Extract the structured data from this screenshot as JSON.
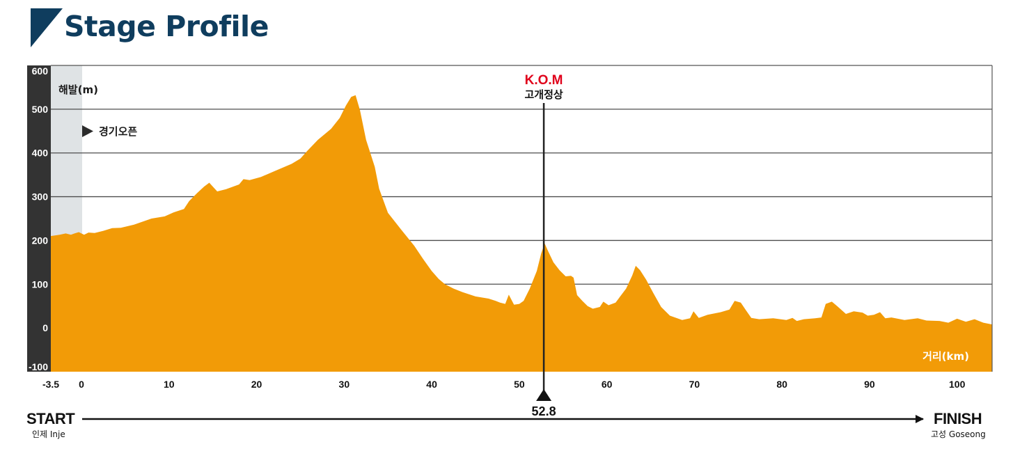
{
  "title": "Stage Profile",
  "colors": {
    "title": "#0f3d5e",
    "profile_fill": "#f29b07",
    "kom_label": "#e0001b",
    "left_axis_bar": "#333333",
    "neutral_zone": "#dfe3e5",
    "grid": "#4d4d4d"
  },
  "chart_data": {
    "type": "area",
    "ylabel": "해발(m)",
    "xlabel": "거리(km)",
    "ylim": [
      -100,
      600
    ],
    "xlim": [
      -3.5,
      104
    ],
    "y_ticks": [
      "600",
      "500",
      "400",
      "300",
      "200",
      "100",
      "0",
      "-100"
    ],
    "y_tick_values": [
      600,
      500,
      400,
      300,
      200,
      100,
      0,
      -100
    ],
    "x_ticks": [
      "-3.5",
      "0",
      "10",
      "20",
      "30",
      "40",
      "50",
      "60",
      "70",
      "80",
      "90",
      "100"
    ],
    "x_tick_values": [
      -3.5,
      0,
      10,
      20,
      30,
      40,
      50,
      60,
      70,
      80,
      90,
      100
    ],
    "neutral_zone": {
      "from_km": -3.5,
      "to_km": 0
    },
    "race_start_label": "경기오픈",
    "kom": {
      "title": "K.O.M",
      "name": "고개정상",
      "km": 52.8,
      "km_label": "52.8"
    },
    "grid": true,
    "profile": {
      "x": [
        -3.5,
        -2.5,
        -1.8,
        -1.2,
        -0.8,
        -0.3,
        0.3,
        0.8,
        1.5,
        2.5,
        3.5,
        4.5,
        6,
        8,
        9.5,
        10.5,
        11.7,
        12.3,
        13.2,
        14,
        14.6,
        15,
        15.5,
        16.5,
        18,
        18.5,
        19.2,
        20.5,
        22,
        24,
        25,
        25.8,
        27,
        28.5,
        29.5,
        30.2,
        30.8,
        31.3,
        31.8,
        32.5,
        33.5,
        34,
        35,
        36.5,
        38,
        39,
        40,
        40.8,
        41.5,
        42.5,
        43.5,
        45,
        46.5,
        47.3,
        47.8,
        48.4,
        48.8,
        49.4,
        50,
        50.5,
        51.2,
        52,
        52.5,
        52.9,
        53.3,
        53.9,
        54.6,
        55.3,
        55.9,
        56.2,
        56.6,
        57.2,
        57.8,
        58.4,
        59.2,
        59.6,
        60.2,
        61,
        62.2,
        62.9,
        63.3,
        63.8,
        64.5,
        65.3,
        66.2,
        67.2,
        68.6,
        69.5,
        69.9,
        70.5,
        71.5,
        73,
        74,
        74.6,
        75.3,
        75.9,
        76.5,
        77.4,
        79,
        80.5,
        81.2,
        81.7,
        82.5,
        83.8,
        84.5,
        85,
        85.7,
        86.3,
        87.3,
        88.2,
        89.2,
        89.8,
        90.5,
        91.2,
        91.8,
        92.5,
        94,
        95.5,
        96.5,
        98,
        99,
        100,
        101,
        102,
        103,
        104
      ],
      "y": [
        210,
        213,
        216,
        213,
        216,
        219,
        213,
        218,
        217,
        222,
        228,
        229,
        236,
        250,
        255,
        264,
        272,
        290,
        308,
        323,
        332,
        323,
        312,
        317,
        328,
        340,
        338,
        345,
        358,
        375,
        387,
        405,
        430,
        455,
        480,
        508,
        528,
        532,
        498,
        430,
        368,
        318,
        263,
        225,
        188,
        158,
        130,
        112,
        100,
        90,
        82,
        72,
        67,
        62,
        58,
        55,
        76,
        53,
        55,
        62,
        90,
        130,
        170,
        193,
        175,
        150,
        132,
        118,
        119,
        115,
        75,
        62,
        50,
        44,
        48,
        60,
        52,
        58,
        90,
        120,
        142,
        132,
        110,
        80,
        48,
        28,
        18,
        22,
        38,
        23,
        30,
        36,
        42,
        62,
        58,
        40,
        23,
        20,
        22,
        18,
        23,
        16,
        20,
        22,
        24,
        55,
        60,
        50,
        32,
        38,
        35,
        28,
        30,
        36,
        22,
        24,
        18,
        22,
        17,
        16,
        12,
        21,
        14,
        20,
        12,
        8
      ]
    }
  },
  "route": {
    "start_label": "START",
    "start_place": "인제 Inje",
    "finish_label": "FINISH",
    "finish_place": "고성 Goseong"
  }
}
